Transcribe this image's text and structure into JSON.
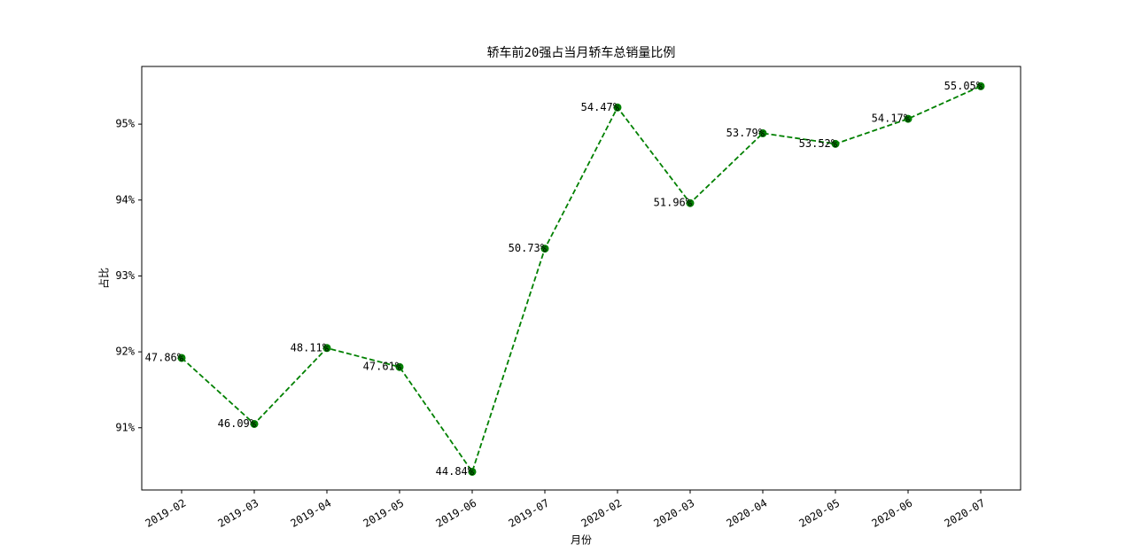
{
  "chart_data": {
    "type": "line",
    "title": "轿车前20强占当月轿车总销量比例",
    "xlabel": "月份",
    "ylabel": "占比",
    "categories": [
      "2019-02",
      "2019-03",
      "2019-04",
      "2019-05",
      "2019-06",
      "2019-07",
      "2020-02",
      "2020-03",
      "2020-04",
      "2020-05",
      "2020-06",
      "2020-07"
    ],
    "values": [
      91.92,
      91.05,
      92.05,
      91.8,
      90.42,
      93.36,
      95.22,
      93.96,
      94.88,
      94.74,
      95.07,
      95.5
    ],
    "annotations": [
      "47.86%",
      "46.09%",
      "48.11%",
      "47.61%",
      "44.84%",
      "50.73%",
      "54.47%",
      "51.96%",
      "53.79%",
      "53.52%",
      "54.17%",
      "55.05%"
    ],
    "color": "#008000",
    "line_style": "dashed",
    "marker": "circle",
    "ylim": [
      90.18,
      95.76
    ],
    "yticks": [
      {
        "value": 91,
        "label": "91%"
      },
      {
        "value": 92,
        "label": "92%"
      },
      {
        "value": 93,
        "label": "93%"
      },
      {
        "value": 94,
        "label": "94%"
      },
      {
        "value": 95,
        "label": "95%"
      }
    ],
    "grid": false
  }
}
